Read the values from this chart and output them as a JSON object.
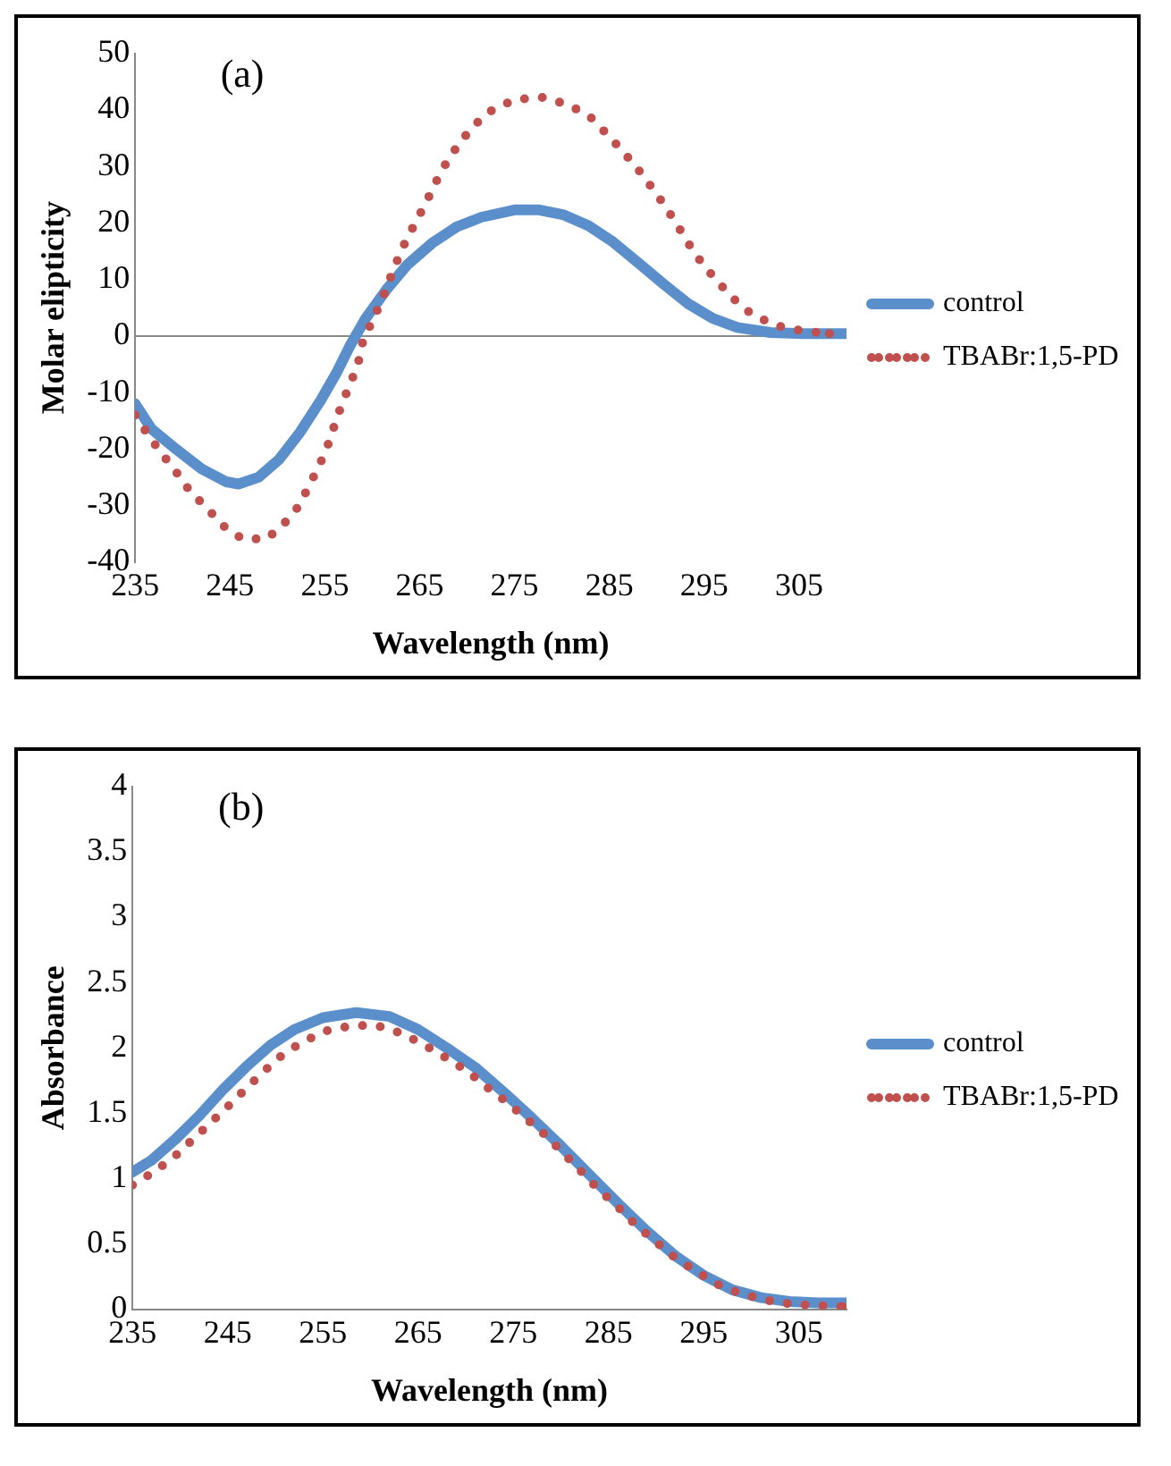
{
  "chart_data": [
    {
      "type": "line",
      "annotations": [
        "(a)"
      ],
      "xlabel": "Wavelength (nm)",
      "ylabel": "Molar elipticity",
      "xlim": [
        235,
        310
      ],
      "xticks": [
        235,
        245,
        255,
        265,
        275,
        285,
        295,
        305
      ],
      "ylim": [
        -40,
        50
      ],
      "yticks": [
        -40,
        -30,
        -20,
        -10,
        0,
        10,
        20,
        30,
        40,
        50
      ],
      "legend": "right",
      "series": [
        {
          "name": "control",
          "color": "#5b8fcb",
          "line_style": "solid",
          "x": [
            235,
            236.7,
            239.3,
            242,
            244.6,
            245.9,
            248,
            250.2,
            252.4,
            254.6,
            256.3,
            257.6,
            259.3,
            261.5,
            263.7,
            266.3,
            268.9,
            271.5,
            275,
            277.6,
            280.2,
            282.8,
            285.4,
            288,
            290.7,
            293.3,
            295.9,
            298.5,
            302,
            305.4,
            310
          ],
          "values": [
            -12,
            -16.4,
            -20,
            -23.5,
            -25.8,
            -26.2,
            -25,
            -21.8,
            -17,
            -11.3,
            -6.3,
            -1.9,
            3.1,
            8.2,
            12.6,
            16.4,
            19.3,
            21,
            22.3,
            22.3,
            21.4,
            19.5,
            16.6,
            13,
            9.2,
            5.7,
            3.1,
            1.5,
            0.6,
            0.4,
            0.4
          ]
        },
        {
          "name": "TBABr:1,5-PD",
          "color": "#c0504d",
          "line_style": "dotted",
          "x": [
            235,
            236.4,
            237.9,
            239.3,
            240.8,
            242.6,
            244.3,
            246.3,
            248.9,
            250.8,
            252.3,
            253.3,
            254.4,
            255.3,
            256,
            256.8,
            257.7,
            258.5,
            259,
            259.9,
            260.9,
            261.7,
            262.6,
            263.5,
            264.6,
            265.7,
            266.7,
            267.8,
            269.1,
            270.7,
            272.6,
            275,
            277.9,
            280.7,
            283,
            284.8,
            286.5,
            288,
            289.5,
            290.9,
            292.2,
            293.4,
            294.7,
            296.3,
            298,
            299.9,
            302.4,
            305.3,
            308.2
          ],
          "values": [
            -14,
            -17.6,
            -21,
            -24,
            -27.5,
            -30.5,
            -33.6,
            -35.9,
            -35.9,
            -33,
            -30,
            -26.6,
            -23,
            -19.4,
            -15.9,
            -12,
            -8.4,
            -4.9,
            -1,
            2.3,
            5.9,
            9.4,
            13.2,
            16.7,
            20.2,
            23.7,
            27.2,
            30.6,
            33.9,
            37.2,
            39.9,
            41.8,
            42.2,
            40.9,
            38.7,
            35.6,
            32.5,
            29.5,
            26.2,
            22.9,
            19.5,
            16.2,
            13,
            9.8,
            6.7,
            4,
            1.9,
            0.9,
            0.4
          ]
        }
      ]
    },
    {
      "type": "line",
      "annotations": [
        "(b)"
      ],
      "xlabel": "Wavelength (nm)",
      "ylabel": "Absorbance",
      "xlim": [
        235,
        310
      ],
      "xticks": [
        235,
        245,
        255,
        265,
        275,
        285,
        295,
        305
      ],
      "ylim": [
        0,
        4
      ],
      "yticks": [
        0,
        0.5,
        1,
        1.5,
        2,
        2.5,
        3,
        3.5,
        4
      ],
      "legend": "right",
      "series": [
        {
          "name": "control",
          "color": "#5b8fcb",
          "line_style": "solid",
          "x": [
            235,
            237,
            239.5,
            242,
            244.5,
            247,
            249.5,
            252,
            255,
            258.5,
            262,
            265,
            268,
            271,
            274,
            277,
            280,
            283,
            286,
            289,
            292,
            295,
            298,
            301,
            304,
            307,
            310
          ],
          "values": [
            1.05,
            1.14,
            1.3,
            1.48,
            1.68,
            1.86,
            2.02,
            2.14,
            2.23,
            2.27,
            2.24,
            2.14,
            2,
            1.85,
            1.66,
            1.46,
            1.25,
            1.03,
            0.81,
            0.6,
            0.41,
            0.26,
            0.15,
            0.09,
            0.06,
            0.05,
            0.05
          ]
        },
        {
          "name": "TBABr:1,5-PD",
          "color": "#c0504d",
          "line_style": "dotted",
          "x": [
            235,
            237,
            239.3,
            241.2,
            243.1,
            245,
            246.8,
            248.8,
            250.8,
            253,
            255.4,
            258.1,
            260.7,
            263.3,
            265.7,
            268,
            270.2,
            272.2,
            274.4,
            276.5,
            278.4,
            280.3,
            282.2,
            283.9,
            285.9,
            287.8,
            289.9,
            291.9,
            294,
            296.5,
            298.9,
            301.6,
            304.2,
            307,
            309.6
          ],
          "values": [
            0.95,
            1.04,
            1.16,
            1.29,
            1.42,
            1.55,
            1.68,
            1.82,
            1.95,
            2.05,
            2.13,
            2.17,
            2.17,
            2.11,
            2.02,
            1.92,
            1.82,
            1.7,
            1.58,
            1.45,
            1.33,
            1.19,
            1.05,
            0.92,
            0.79,
            0.65,
            0.52,
            0.4,
            0.3,
            0.19,
            0.12,
            0.07,
            0.04,
            0.03,
            0.02
          ]
        }
      ]
    }
  ]
}
